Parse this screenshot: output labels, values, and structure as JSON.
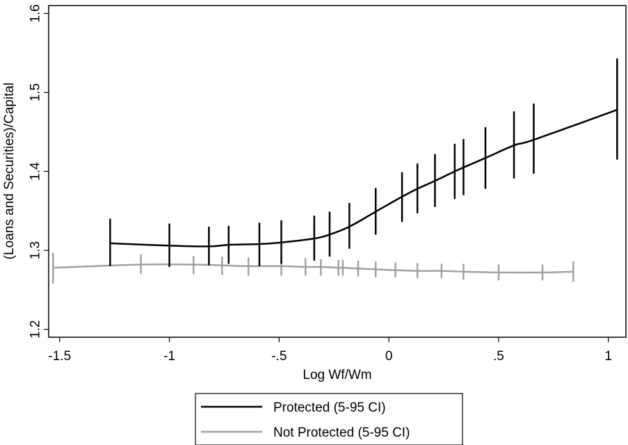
{
  "chart_data": {
    "type": "line",
    "xlabel": "Log Wf/Wm",
    "ylabel": "(Loans and Securities)/Capital",
    "xlim": [
      -1.55,
      1.08
    ],
    "ylim": [
      1.19,
      1.61
    ],
    "xticks": [
      {
        "value": -1.5,
        "label": "-1.5"
      },
      {
        "value": -1,
        "label": "-1"
      },
      {
        "value": -0.5,
        "label": "-.5"
      },
      {
        "value": 0,
        "label": "0"
      },
      {
        "value": 0.5,
        "label": ".5"
      },
      {
        "value": 1,
        "label": "1"
      }
    ],
    "yticks": [
      {
        "value": 1.2,
        "label": "1.2"
      },
      {
        "value": 1.3,
        "label": "1.3"
      },
      {
        "value": 1.4,
        "label": "1.4"
      },
      {
        "value": 1.5,
        "label": "1.5"
      },
      {
        "value": 1.6,
        "label": "1.6"
      }
    ],
    "grid": false,
    "legend_position": "bottom-center",
    "series": [
      {
        "name": "Protected (5-95 CI)",
        "color": "#000000",
        "x": [
          -1.27,
          -1.0,
          -0.82,
          -0.73,
          -0.59,
          -0.49,
          -0.34,
          -0.27,
          -0.18,
          -0.06,
          0.06,
          0.13,
          0.21,
          0.3,
          0.34,
          0.44,
          0.57,
          0.66,
          1.04
        ],
        "y": [
          1.309,
          1.306,
          1.305,
          1.307,
          1.308,
          1.31,
          1.315,
          1.32,
          1.33,
          1.349,
          1.368,
          1.378,
          1.388,
          1.4,
          1.405,
          1.417,
          1.433,
          1.44,
          1.478
        ],
        "lower": [
          1.28,
          1.279,
          1.281,
          1.283,
          1.28,
          1.283,
          1.287,
          1.292,
          1.302,
          1.32,
          1.336,
          1.347,
          1.355,
          1.365,
          1.37,
          1.378,
          1.391,
          1.397,
          1.415
        ],
        "upper": [
          1.34,
          1.334,
          1.33,
          1.331,
          1.335,
          1.338,
          1.344,
          1.349,
          1.36,
          1.379,
          1.399,
          1.41,
          1.422,
          1.435,
          1.441,
          1.456,
          1.476,
          1.486,
          1.543
        ]
      },
      {
        "name": "Not Protected (5-95 CI)",
        "color": "#a0a0a0",
        "x": [
          -1.53,
          -1.13,
          -0.89,
          -0.76,
          -0.64,
          -0.49,
          -0.38,
          -0.31,
          -0.23,
          -0.21,
          -0.14,
          -0.06,
          0.03,
          0.13,
          0.24,
          0.34,
          0.5,
          0.7,
          0.84
        ],
        "y": [
          1.278,
          1.282,
          1.282,
          1.281,
          1.28,
          1.28,
          1.279,
          1.279,
          1.278,
          1.278,
          1.277,
          1.276,
          1.275,
          1.274,
          1.274,
          1.273,
          1.272,
          1.272,
          1.273
        ],
        "lower": [
          1.258,
          1.27,
          1.27,
          1.269,
          1.268,
          1.268,
          1.268,
          1.268,
          1.268,
          1.268,
          1.267,
          1.266,
          1.266,
          1.265,
          1.265,
          1.263,
          1.262,
          1.262,
          1.26
        ],
        "upper": [
          1.297,
          1.295,
          1.293,
          1.292,
          1.291,
          1.291,
          1.29,
          1.289,
          1.288,
          1.288,
          1.287,
          1.286,
          1.285,
          1.284,
          1.283,
          1.283,
          1.282,
          1.282,
          1.286
        ]
      }
    ]
  }
}
